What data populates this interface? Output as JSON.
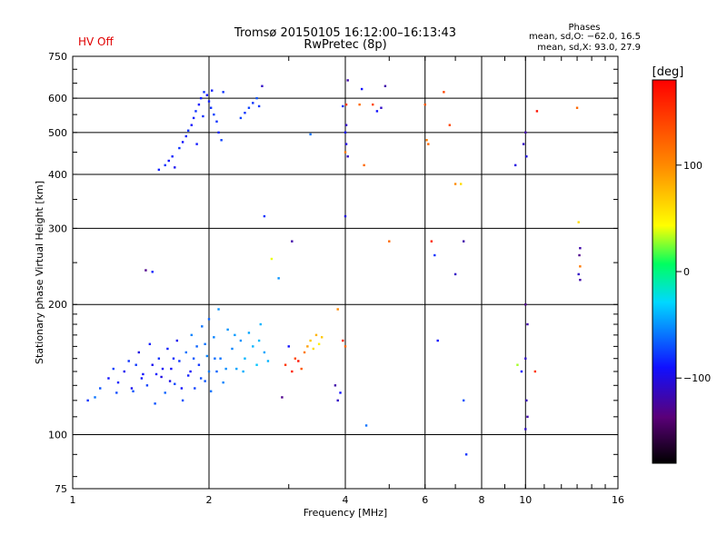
{
  "header": {
    "title": "Tromsø 20150105 16:12:00–16:13:43",
    "subtitle": "RwPretec (8p)",
    "hv_status": "HV Off",
    "hv_color": "#e00000",
    "stats_title": "Phases",
    "stats_line1": "mean, sd,O: −62.0, 16.5",
    "stats_line2": "mean, sd,X:  93.0, 27.9"
  },
  "chart_data": {
    "type": "scatter",
    "xlabel": "Frequency [MHz]",
    "ylabel": "Stationary phase Virtual Height [km]",
    "xscale": "log",
    "yscale": "log",
    "xlim": [
      1,
      16
    ],
    "ylim": [
      75,
      750
    ],
    "xticks": [
      1,
      2,
      4,
      6,
      8,
      10,
      16
    ],
    "yticks": [
      75,
      100,
      200,
      300,
      400,
      500,
      600,
      750
    ],
    "grid_x": [
      2,
      4,
      6,
      8,
      10
    ],
    "grid_y": [
      100,
      200,
      300,
      400,
      500,
      600
    ],
    "colorbar": {
      "label": "[deg]",
      "range": [
        -180,
        180
      ],
      "ticks": [
        100,
        0,
        -100
      ]
    },
    "points": [
      [
        1.08,
        120,
        -80
      ],
      [
        1.12,
        122,
        -60
      ],
      [
        1.15,
        128,
        -70
      ],
      [
        1.2,
        135,
        -90
      ],
      [
        1.23,
        142,
        -75
      ],
      [
        1.26,
        132,
        -85
      ],
      [
        1.3,
        140,
        -95
      ],
      [
        1.33,
        148,
        -80
      ],
      [
        1.36,
        126,
        -70
      ],
      [
        1.4,
        155,
        -100
      ],
      [
        1.43,
        138,
        -90
      ],
      [
        1.46,
        130,
        -75
      ],
      [
        1.48,
        162,
        -85
      ],
      [
        1.5,
        145,
        -95
      ],
      [
        1.52,
        118,
        -70
      ],
      [
        1.55,
        150,
        -80
      ],
      [
        1.57,
        136,
        -100
      ],
      [
        1.6,
        125,
        -65
      ],
      [
        1.62,
        158,
        -85
      ],
      [
        1.65,
        142,
        -90
      ],
      [
        1.68,
        131,
        -75
      ],
      [
        1.7,
        165,
        -95
      ],
      [
        1.72,
        148,
        -80
      ],
      [
        1.75,
        120,
        -70
      ],
      [
        1.78,
        155,
        -60
      ],
      [
        1.8,
        137,
        -85
      ],
      [
        1.83,
        170,
        -55
      ],
      [
        1.86,
        128,
        -75
      ],
      [
        1.88,
        160,
        -65
      ],
      [
        1.9,
        145,
        -80
      ],
      [
        1.93,
        178,
        -60
      ],
      [
        1.96,
        133,
        -70
      ],
      [
        1.98,
        152,
        -55
      ],
      [
        2.0,
        185,
        -65
      ],
      [
        2.02,
        126,
        -60
      ],
      [
        2.05,
        168,
        -55
      ],
      [
        2.08,
        140,
        -65
      ],
      [
        2.1,
        195,
        -50
      ],
      [
        2.12,
        150,
        -60
      ],
      [
        2.15,
        132,
        -55
      ],
      [
        2.2,
        175,
        -50
      ],
      [
        2.25,
        158,
        -55
      ],
      [
        2.3,
        142,
        -45
      ],
      [
        2.35,
        165,
        -50
      ],
      [
        2.4,
        150,
        -40
      ],
      [
        2.45,
        172,
        -45
      ],
      [
        2.5,
        160,
        -40
      ],
      [
        2.55,
        145,
        -35
      ],
      [
        2.6,
        180,
        -40
      ],
      [
        2.65,
        155,
        -45
      ],
      [
        2.7,
        148,
        -40
      ],
      [
        1.35,
        128,
        -95
      ],
      [
        1.42,
        135,
        -88
      ],
      [
        1.58,
        142,
        -92
      ],
      [
        1.64,
        133,
        -98
      ],
      [
        1.74,
        128,
        -90
      ],
      [
        1.82,
        140,
        -92
      ],
      [
        1.92,
        135,
        -70
      ],
      [
        1.96,
        162,
        -60
      ],
      [
        2.06,
        150,
        -62
      ],
      [
        1.25,
        125,
        -72
      ],
      [
        1.38,
        145,
        -78
      ],
      [
        1.53,
        138,
        -88
      ],
      [
        1.67,
        150,
        -82
      ],
      [
        1.85,
        150,
        -68
      ],
      [
        2.0,
        140,
        -58
      ],
      [
        2.18,
        142,
        -52
      ],
      [
        2.28,
        170,
        -48
      ],
      [
        2.38,
        140,
        -42
      ],
      [
        2.58,
        165,
        -38
      ],
      [
        1.45,
        240,
        -130
      ],
      [
        1.5,
        238,
        -85
      ],
      [
        1.55,
        410,
        -85
      ],
      [
        1.6,
        420,
        -80
      ],
      [
        1.63,
        430,
        -90
      ],
      [
        1.66,
        440,
        -85
      ],
      [
        1.68,
        415,
        -95
      ],
      [
        1.72,
        460,
        -80
      ],
      [
        1.75,
        475,
        -90
      ],
      [
        1.78,
        490,
        -85
      ],
      [
        1.8,
        505,
        -80
      ],
      [
        1.83,
        520,
        -90
      ],
      [
        1.85,
        540,
        -85
      ],
      [
        1.87,
        560,
        -80
      ],
      [
        1.9,
        580,
        -90
      ],
      [
        1.92,
        600,
        -85
      ],
      [
        1.95,
        620,
        -80
      ],
      [
        1.98,
        610,
        -90
      ],
      [
        2.0,
        590,
        -85
      ],
      [
        2.02,
        570,
        -80
      ],
      [
        2.05,
        550,
        -75
      ],
      [
        2.08,
        530,
        -80
      ],
      [
        2.1,
        500,
        -85
      ],
      [
        2.13,
        480,
        -75
      ],
      [
        1.88,
        470,
        -88
      ],
      [
        1.94,
        545,
        -82
      ],
      [
        2.03,
        625,
        -86
      ],
      [
        2.15,
        620,
        -80
      ],
      [
        2.35,
        540,
        -75
      ],
      [
        2.4,
        555,
        -80
      ],
      [
        2.45,
        570,
        -75
      ],
      [
        2.5,
        585,
        -80
      ],
      [
        2.55,
        600,
        -70
      ],
      [
        2.58,
        575,
        -78
      ],
      [
        2.62,
        640,
        -110
      ],
      [
        2.65,
        320,
        -80
      ],
      [
        2.75,
        255,
        40
      ],
      [
        2.85,
        230,
        -50
      ],
      [
        2.9,
        122,
        -130
      ],
      [
        3.0,
        160,
        -90
      ],
      [
        3.05,
        280,
        -120
      ],
      [
        2.95,
        145,
        150
      ],
      [
        3.05,
        140,
        160
      ],
      [
        3.1,
        150,
        140
      ],
      [
        3.15,
        148,
        170
      ],
      [
        3.2,
        142,
        130
      ],
      [
        3.25,
        155,
        110
      ],
      [
        3.3,
        160,
        90
      ],
      [
        3.35,
        165,
        70
      ],
      [
        3.4,
        158,
        60
      ],
      [
        3.45,
        170,
        80
      ],
      [
        3.5,
        162,
        50
      ],
      [
        3.55,
        168,
        70
      ],
      [
        3.35,
        495,
        -60
      ],
      [
        3.85,
        195,
        100
      ],
      [
        3.8,
        130,
        -120
      ],
      [
        3.85,
        120,
        -110
      ],
      [
        3.9,
        125,
        -90
      ],
      [
        3.95,
        165,
        160
      ],
      [
        4.0,
        160,
        120
      ],
      [
        4.02,
        520,
        -110
      ],
      [
        4.0,
        500,
        -90
      ],
      [
        4.02,
        470,
        -100
      ],
      [
        4.05,
        440,
        -110
      ],
      [
        4.0,
        450,
        110
      ],
      [
        4.02,
        580,
        150
      ],
      [
        4.05,
        660,
        -120
      ],
      [
        4.0,
        320,
        -100
      ],
      [
        3.95,
        575,
        -80
      ],
      [
        4.3,
        580,
        120
      ],
      [
        4.35,
        630,
        -90
      ],
      [
        4.4,
        420,
        120
      ],
      [
        4.45,
        105,
        -60
      ],
      [
        4.6,
        580,
        140
      ],
      [
        4.7,
        560,
        -90
      ],
      [
        4.8,
        570,
        -110
      ],
      [
        4.9,
        640,
        -120
      ],
      [
        5.0,
        280,
        120
      ],
      [
        6.0,
        580,
        130
      ],
      [
        6.05,
        480,
        110
      ],
      [
        6.1,
        470,
        120
      ],
      [
        6.2,
        280,
        160
      ],
      [
        6.3,
        260,
        -80
      ],
      [
        6.4,
        165,
        -90
      ],
      [
        6.6,
        620,
        140
      ],
      [
        6.8,
        520,
        140
      ],
      [
        7.0,
        380,
        100
      ],
      [
        7.0,
        235,
        -110
      ],
      [
        7.2,
        380,
        60
      ],
      [
        7.3,
        280,
        -120
      ],
      [
        7.3,
        120,
        -70
      ],
      [
        7.4,
        90,
        -80
      ],
      [
        9.5,
        420,
        -100
      ],
      [
        9.6,
        145,
        30
      ],
      [
        9.8,
        140,
        -90
      ],
      [
        9.9,
        470,
        -110
      ],
      [
        10.0,
        500,
        -120
      ],
      [
        10.05,
        440,
        -100
      ],
      [
        10.0,
        200,
        -130
      ],
      [
        10.1,
        180,
        -120
      ],
      [
        10.0,
        150,
        -110
      ],
      [
        10.05,
        120,
        -115
      ],
      [
        10.1,
        110,
        -120
      ],
      [
        10.0,
        103,
        -110
      ],
      [
        10.5,
        140,
        150
      ],
      [
        10.6,
        560,
        170
      ],
      [
        13.0,
        570,
        120
      ],
      [
        13.1,
        310,
        60
      ],
      [
        13.2,
        270,
        -120
      ],
      [
        13.15,
        260,
        -130
      ],
      [
        13.2,
        245,
        110
      ],
      [
        13.1,
        235,
        -110
      ],
      [
        13.2,
        228,
        -120
      ]
    ]
  }
}
